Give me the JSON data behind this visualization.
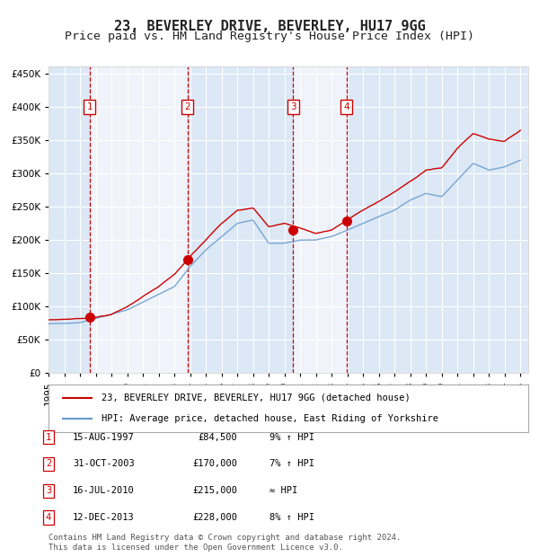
{
  "title": "23, BEVERLEY DRIVE, BEVERLEY, HU17 9GG",
  "subtitle": "Price paid vs. HM Land Registry's House Price Index (HPI)",
  "footer": "Contains HM Land Registry data © Crown copyright and database right 2024.\nThis data is licensed under the Open Government Licence v3.0.",
  "legend_house": "23, BEVERLEY DRIVE, BEVERLEY, HU17 9GG (detached house)",
  "legend_hpi": "HPI: Average price, detached house, East Riding of Yorkshire",
  "transactions": [
    {
      "num": 1,
      "date": "15-AUG-1997",
      "year": 1997.62,
      "price": 84500,
      "label": "9% ↑ HPI"
    },
    {
      "num": 2,
      "date": "31-OCT-2003",
      "year": 2003.83,
      "price": 170000,
      "label": "7% ↑ HPI"
    },
    {
      "num": 3,
      "date": "16-JUL-2010",
      "year": 2010.54,
      "price": 215000,
      "label": "≈ HPI"
    },
    {
      "num": 4,
      "date": "12-DEC-2013",
      "year": 2013.95,
      "price": 228000,
      "label": "8% ↑ HPI"
    }
  ],
  "xlim": [
    1995.0,
    2025.5
  ],
  "ylim": [
    0,
    460000
  ],
  "yticks": [
    0,
    50000,
    100000,
    150000,
    200000,
    250000,
    300000,
    350000,
    400000,
    450000
  ],
  "xticks": [
    1995,
    1996,
    1997,
    1998,
    1999,
    2000,
    2001,
    2002,
    2003,
    2004,
    2005,
    2006,
    2007,
    2008,
    2009,
    2010,
    2011,
    2012,
    2013,
    2014,
    2015,
    2016,
    2017,
    2018,
    2019,
    2020,
    2021,
    2022,
    2023,
    2024,
    2025
  ],
  "bg_color": "#f0f4fa",
  "plot_bg": "#f0f4fa",
  "grid_color": "#ffffff",
  "house_line_color": "#cc0000",
  "hpi_line_color": "#6699cc",
  "vline_color": "#cc0000",
  "shade_color": "#dce8f5",
  "marker_color": "#cc0000",
  "box_color": "#cc0000",
  "title_fontsize": 11,
  "subtitle_fontsize": 9.5,
  "tick_fontsize": 7.5
}
